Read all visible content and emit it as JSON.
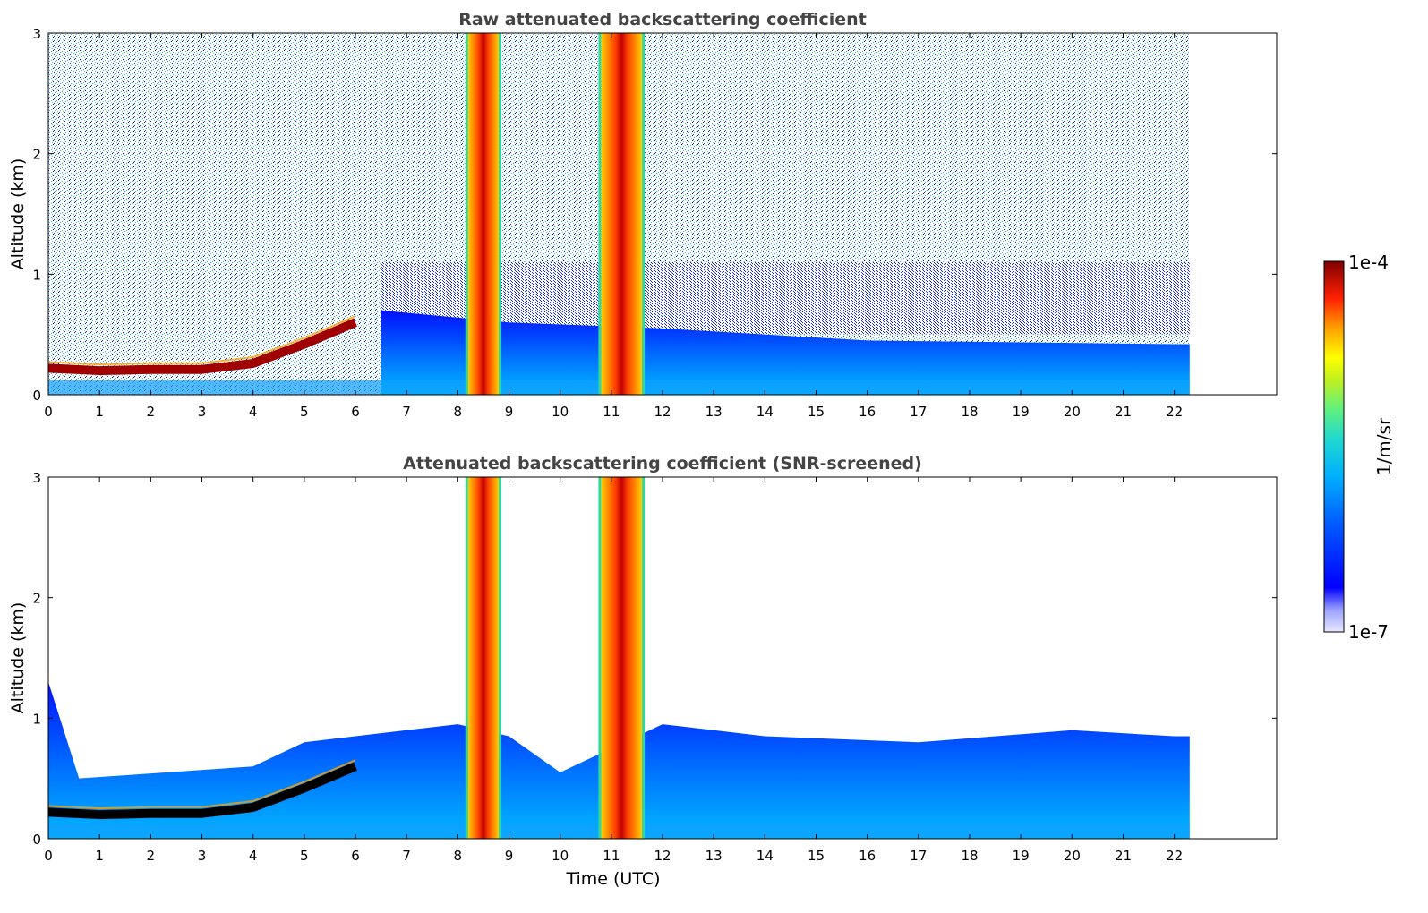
{
  "chart_data": [
    {
      "type": "heatmap",
      "title": "Raw attenuated backscattering coefficient",
      "xlabel": "",
      "ylabel": "Altitude (km)",
      "xlim": [
        0,
        24
      ],
      "ylim": [
        0,
        3
      ],
      "x_ticks": [
        "0",
        "1",
        "2",
        "3",
        "4",
        "5",
        "6",
        "7",
        "8",
        "9",
        "10",
        "11",
        "12",
        "13",
        "14",
        "15",
        "16",
        "17",
        "18",
        "19",
        "20",
        "21",
        "22"
      ],
      "y_ticks": [
        "0",
        "1",
        "2",
        "3"
      ],
      "data_end_time": 22.3,
      "features": {
        "boundary_layer_top_km": [
          [
            0,
            0.22
          ],
          [
            1,
            0.2
          ],
          [
            2,
            0.21
          ],
          [
            3,
            0.21
          ],
          [
            4,
            0.26
          ],
          [
            5,
            0.42
          ],
          [
            6,
            0.6
          ]
        ],
        "cloud_columns_utc": [
          [
            8.2,
            8.8
          ],
          [
            10.8,
            11.6
          ]
        ],
        "blue_aerosol_layer_top_km": [
          [
            6.5,
            0.7
          ],
          [
            9,
            0.6
          ],
          [
            12,
            0.55
          ],
          [
            16,
            0.45
          ],
          [
            22,
            0.42
          ]
        ],
        "noise_above_layer": true
      }
    },
    {
      "type": "heatmap",
      "title": "Attenuated backscattering coefficient (SNR-screened)",
      "xlabel": "Time (UTC)",
      "ylabel": "Altitude (km)",
      "xlim": [
        0,
        24
      ],
      "ylim": [
        0,
        3
      ],
      "x_ticks": [
        "0",
        "1",
        "2",
        "3",
        "4",
        "5",
        "6",
        "7",
        "8",
        "9",
        "10",
        "11",
        "12",
        "13",
        "14",
        "15",
        "16",
        "17",
        "18",
        "19",
        "20",
        "21",
        "22"
      ],
      "y_ticks": [
        "0",
        "1",
        "2",
        "3"
      ],
      "data_end_time": 22.3,
      "features": {
        "boundary_layer_top_km": [
          [
            0,
            0.22
          ],
          [
            1,
            0.2
          ],
          [
            2,
            0.21
          ],
          [
            3,
            0.21
          ],
          [
            4,
            0.26
          ],
          [
            5,
            0.42
          ],
          [
            6,
            0.6
          ]
        ],
        "cloud_columns_utc": [
          [
            8.2,
            8.8
          ],
          [
            10.8,
            11.6
          ]
        ],
        "screened_layer_top_km": [
          [
            0,
            1.3
          ],
          [
            0.6,
            0.5
          ],
          [
            4,
            0.6
          ],
          [
            5,
            0.8
          ],
          [
            7,
            0.9
          ],
          [
            8,
            0.95
          ],
          [
            9,
            0.85
          ],
          [
            10,
            0.55
          ],
          [
            12,
            0.95
          ],
          [
            14,
            0.85
          ],
          [
            17,
            0.8
          ],
          [
            20,
            0.9
          ],
          [
            22,
            0.85
          ]
        ],
        "noise_above_layer": false
      }
    }
  ],
  "colorbar": {
    "label": "1/m/sr",
    "max_label": "1e-4",
    "min_label": "1e-7",
    "colors": [
      "#e8e8ff",
      "#9aa0ff",
      "#0000ff",
      "#0050ff",
      "#00a0ff",
      "#20d0e0",
      "#40e0a0",
      "#a0f040",
      "#ffff00",
      "#ffb000",
      "#ff6000",
      "#e00000",
      "#800000"
    ]
  }
}
